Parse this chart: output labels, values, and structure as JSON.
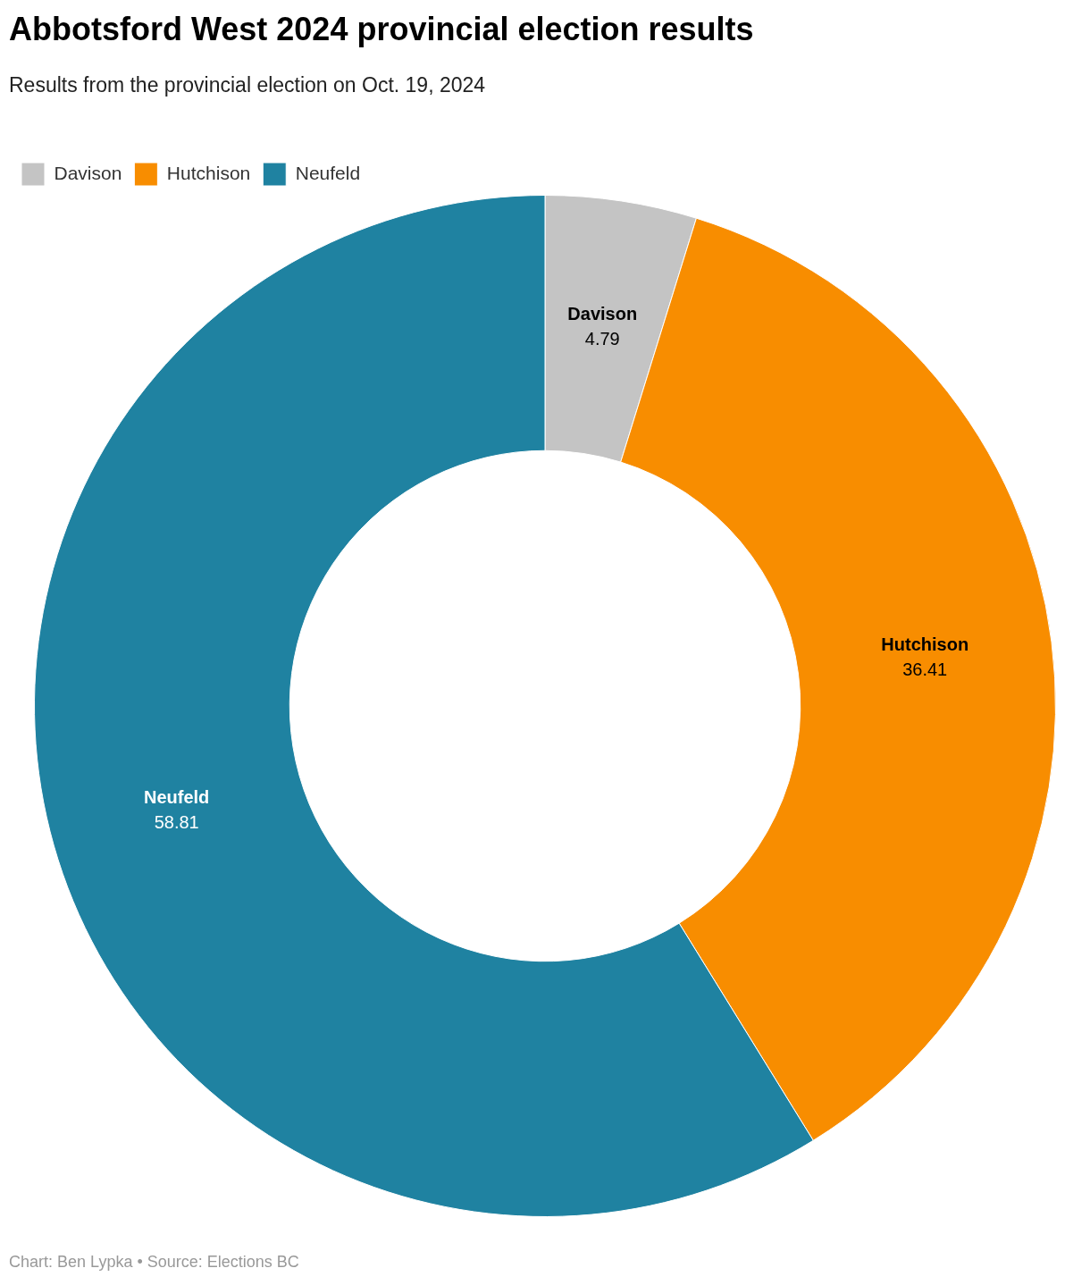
{
  "chart_data": {
    "type": "donut",
    "title": "Abbotsford West 2024 provincial election results",
    "subtitle": "Results from the provincial election on Oct. 19, 2024",
    "categories": [
      "Davison",
      "Hutchison",
      "Neufeld"
    ],
    "values": [
      4.79,
      36.41,
      58.81
    ],
    "colors": [
      "#c4c4c4",
      "#f88d00",
      "#1f82a1"
    ],
    "legend": "top left",
    "data_labels": true,
    "annotations": [
      "Chart: Ben Lypka • Source: Elections BC"
    ]
  }
}
